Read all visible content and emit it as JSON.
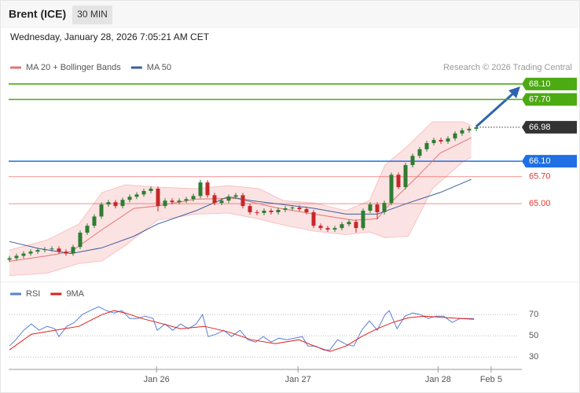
{
  "header": {
    "title": "Brent (ICE)",
    "interval": "30 MIN",
    "timestamp": "Wednesday, January 28, 2026 7:05:21 AM CET",
    "credit": "Research © 2026 Trading Central"
  },
  "chart_data": [
    {
      "type": "candlestick",
      "up_color": "#2e7d32",
      "down_color": "#c62828",
      "xlim": [
        0,
        72
      ],
      "ylim": [
        63.05,
        68.85
      ],
      "open": [
        63.55,
        63.59,
        63.65,
        63.71,
        63.76,
        63.8,
        63.82,
        63.84,
        63.76,
        63.71,
        63.88,
        64.25,
        64.43,
        64.67,
        64.98,
        65.04,
        64.94,
        65.1,
        65.18,
        65.24,
        65.33,
        65.39,
        64.94,
        65.08,
        65.04,
        65.08,
        65.12,
        65.2,
        65.55,
        65.22,
        65.02,
        65.08,
        65.18,
        65.22,
        64.94,
        64.78,
        64.76,
        64.82,
        64.78,
        64.84,
        64.88,
        64.9,
        64.86,
        64.78,
        64.43,
        64.37,
        64.33,
        64.37,
        64.47,
        64.53,
        64.37,
        64.82,
        64.98,
        64.78,
        65.02,
        65.75,
        65.43,
        66.0,
        66.24,
        66.41,
        66.57,
        66.65,
        66.61,
        66.69,
        66.82,
        66.9,
        66.94
      ],
      "high": [
        63.65,
        63.71,
        63.77,
        63.82,
        63.86,
        63.88,
        63.9,
        63.9,
        63.82,
        63.94,
        64.31,
        64.49,
        64.73,
        65.04,
        65.1,
        65.1,
        65.16,
        65.24,
        65.3,
        65.39,
        65.45,
        65.45,
        65.14,
        65.14,
        65.14,
        65.18,
        65.26,
        65.62,
        65.61,
        65.28,
        65.14,
        65.24,
        65.28,
        65.28,
        65.0,
        64.84,
        64.88,
        64.88,
        64.9,
        64.94,
        64.96,
        64.96,
        64.92,
        64.84,
        64.49,
        64.43,
        64.43,
        64.53,
        64.59,
        64.59,
        64.88,
        65.04,
        65.04,
        65.08,
        65.81,
        65.81,
        66.06,
        66.3,
        66.47,
        66.63,
        66.71,
        66.71,
        66.75,
        66.88,
        66.96,
        67.0,
        67.04
      ],
      "low": [
        63.49,
        63.53,
        63.59,
        63.65,
        63.7,
        63.74,
        63.76,
        63.7,
        63.65,
        63.65,
        63.82,
        64.19,
        64.37,
        64.61,
        64.92,
        64.88,
        64.88,
        65.04,
        65.12,
        65.18,
        65.27,
        64.8,
        64.88,
        64.98,
        64.98,
        65.02,
        65.06,
        65.14,
        65.16,
        64.96,
        64.96,
        65.02,
        65.12,
        64.88,
        64.72,
        64.7,
        64.7,
        64.72,
        64.72,
        64.78,
        64.82,
        64.8,
        64.72,
        64.37,
        64.31,
        64.27,
        64.27,
        64.31,
        64.41,
        64.25,
        64.31,
        64.76,
        64.6,
        64.72,
        64.96,
        65.37,
        65.37,
        65.94,
        66.18,
        66.35,
        66.51,
        66.55,
        66.55,
        66.63,
        66.76,
        66.84,
        66.88
      ],
      "close": [
        63.59,
        63.65,
        63.71,
        63.76,
        63.8,
        63.82,
        63.84,
        63.76,
        63.71,
        63.88,
        64.25,
        64.43,
        64.67,
        64.98,
        65.04,
        64.94,
        65.1,
        65.18,
        65.24,
        65.33,
        65.39,
        64.94,
        65.08,
        65.04,
        65.08,
        65.12,
        65.2,
        65.55,
        65.22,
        65.02,
        65.08,
        65.18,
        65.22,
        64.94,
        64.78,
        64.76,
        64.82,
        64.78,
        64.84,
        64.88,
        64.9,
        64.86,
        64.78,
        64.43,
        64.37,
        64.33,
        64.37,
        64.47,
        64.53,
        64.37,
        64.82,
        64.98,
        64.78,
        65.02,
        65.75,
        65.43,
        66.0,
        66.24,
        66.41,
        66.57,
        66.65,
        66.61,
        66.69,
        66.82,
        66.9,
        66.94,
        66.98
      ],
      "band": {
        "color": "#f5a3a3",
        "x": [
          0,
          5.3,
          9.8,
          13.1,
          16.4,
          20.9,
          26.4,
          30.9,
          35.3,
          38.7,
          43.1,
          47.6,
          50.9,
          53.1,
          56.4,
          59.8,
          64.2,
          65.3
        ],
        "upper": [
          63.8,
          64.06,
          64.47,
          65.29,
          65.49,
          65.43,
          65.39,
          65.47,
          65.39,
          65.08,
          65.02,
          64.82,
          65.08,
          66.0,
          66.51,
          67.12,
          67.12,
          67.02
        ],
        "lower": [
          63.14,
          63.2,
          63.45,
          63.52,
          63.92,
          64.57,
          64.73,
          64.76,
          64.6,
          64.45,
          64.29,
          64.2,
          64.27,
          64.12,
          64.16,
          65.39,
          66.1,
          66.2
        ]
      },
      "series": [
        {
          "name": "MA 20 + Bollinger Bands",
          "color": "#e57373",
          "x": [
            0,
            5.3,
            8.7,
            13.1,
            17.6,
            20.9,
            26.4,
            32,
            37.6,
            43.1,
            48.7,
            52,
            54.2,
            57.6,
            60.9,
            65.3
          ],
          "values": [
            63.51,
            63.65,
            63.76,
            64.33,
            64.88,
            64.94,
            65.12,
            65.14,
            64.9,
            64.73,
            64.57,
            64.61,
            65.08,
            65.69,
            66.31,
            66.71
          ]
        },
        {
          "name": "MA 50",
          "color": "#3b5f9e",
          "x": [
            0,
            4.2,
            8.7,
            13.1,
            17.6,
            20.9,
            26.4,
            30.9,
            34.2,
            38.7,
            43.1,
            47.6,
            52,
            56.4,
            60.9,
            65.3
          ],
          "values": [
            64.02,
            63.84,
            63.71,
            63.86,
            64.16,
            64.47,
            64.82,
            65.18,
            65.08,
            64.98,
            64.88,
            64.73,
            64.73,
            65.02,
            65.29,
            65.63
          ]
        }
      ],
      "levels": [
        {
          "value": 68.1,
          "label": "68.10",
          "color": "#4caa12",
          "style": "box"
        },
        {
          "value": 67.7,
          "label": "67.70",
          "color": "#4caa12",
          "style": "box"
        },
        {
          "value": 66.98,
          "label": "66.98",
          "color": "#333333",
          "style": "current"
        },
        {
          "value": 66.1,
          "label": "66.10",
          "color": "#1f6fe5",
          "style": "box"
        },
        {
          "value": 65.7,
          "label": "65.70",
          "color": "#e53935",
          "style": "text"
        },
        {
          "value": 65.0,
          "label": "65.00",
          "color": "#e53935",
          "style": "text"
        }
      ]
    },
    {
      "type": "line",
      "xlim": [
        0,
        72
      ],
      "ylim": [
        22,
        85
      ],
      "yticks": [
        30,
        50,
        70
      ],
      "grid": true,
      "xticks": [
        {
          "value": 20.8,
          "label": "Jan 26"
        },
        {
          "value": 40.8,
          "label": "Jan 27"
        },
        {
          "value": 60.6,
          "label": "Jan 28"
        },
        {
          "value": 68.1,
          "label": "Feb 5"
        }
      ],
      "series": [
        {
          "name": "RSI",
          "color": "#5b7fd6",
          "x": [
            0,
            0.9,
            2,
            3.1,
            4.2,
            5.3,
            6.4,
            7,
            8.1,
            9.2,
            10.3,
            11.4,
            12.6,
            13.7,
            14.8,
            15.9,
            17,
            18.1,
            19.2,
            20.3,
            20.9,
            22,
            23.1,
            24.2,
            25.3,
            26.4,
            27.3,
            28.1,
            29.2,
            30.3,
            31.4,
            32.6,
            33.7,
            34.8,
            35.9,
            37,
            38.1,
            39.2,
            40.3,
            41.4,
            42.2,
            43.3,
            44.4,
            45.3,
            46.4,
            47.6,
            48.7,
            49.8,
            50.9,
            52,
            53.1,
            53.7,
            54.8,
            55.9,
            57,
            58.1,
            59.2,
            60.3,
            61.4,
            62.6,
            63.7,
            64.8,
            65.7
          ],
          "values": [
            40.4,
            46.3,
            55.2,
            61.1,
            55.2,
            58.9,
            56.7,
            49.3,
            58.9,
            62.6,
            70,
            73.7,
            77.4,
            73.7,
            71.5,
            73.7,
            66.3,
            66.3,
            68.5,
            66.3,
            55.2,
            61.1,
            55.2,
            61.1,
            56.7,
            61.1,
            70,
            49.3,
            51.5,
            55.2,
            49.3,
            55.2,
            46.3,
            44.1,
            49.3,
            44.1,
            47.8,
            46.3,
            47.8,
            49.3,
            40.4,
            40.4,
            36.7,
            36.7,
            46.3,
            41.9,
            40.4,
            55.2,
            64.1,
            55.2,
            70,
            73.7,
            56.7,
            68.5,
            71.5,
            70,
            66.3,
            68.5,
            68.5,
            62.6,
            66.3,
            66.3,
            66.3
          ]
        },
        {
          "name": "9MA",
          "color": "#e0201b",
          "x": [
            0,
            3.1,
            6.4,
            9.8,
            13.1,
            14.8,
            16.4,
            18.7,
            20.9,
            24.2,
            27.6,
            30.9,
            34.2,
            37.6,
            40.9,
            43.1,
            45.3,
            47.6,
            49.8,
            52,
            54.2,
            56.4,
            58.7,
            62,
            65.7
          ],
          "values": [
            36.7,
            51.5,
            55.2,
            58.9,
            70,
            73.7,
            71.5,
            66.3,
            62.6,
            56.7,
            58.9,
            53.7,
            46.3,
            42.6,
            46.3,
            40.4,
            35.2,
            40.4,
            49.3,
            56.7,
            62.6,
            67,
            68.5,
            67,
            65.6
          ]
        }
      ]
    }
  ]
}
